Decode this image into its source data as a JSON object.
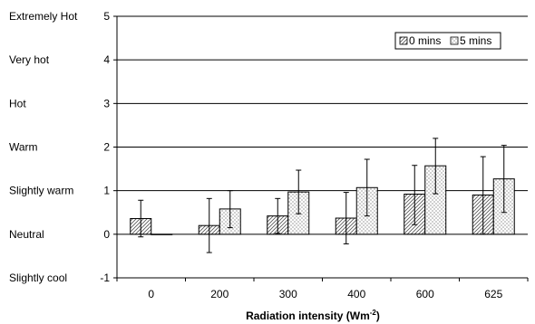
{
  "chart_data": {
    "type": "bar",
    "title": "",
    "xlabel": "Radiation intensity (Wm",
    "xlabel_sup": "-2",
    "xlabel_end": ")",
    "ylabel": "",
    "ylim": [
      -1,
      5
    ],
    "yticks": [
      -1,
      0,
      1,
      2,
      3,
      4,
      5
    ],
    "ytick_labels": [
      "-1",
      "0",
      "1",
      "2",
      "3",
      "4",
      "5"
    ],
    "scale_labels": [
      {
        "value": -1,
        "text": "Slightly cool"
      },
      {
        "value": 0,
        "text": "Neutral"
      },
      {
        "value": 1,
        "text": "Slightly warm"
      },
      {
        "value": 2,
        "text": "Warm"
      },
      {
        "value": 3,
        "text": "Hot"
      },
      {
        "value": 4,
        "text": "Very hot"
      },
      {
        "value": 5,
        "text": "Extremely Hot"
      }
    ],
    "categories": [
      "0",
      "200",
      "300",
      "400",
      "600",
      "625"
    ],
    "grid": true,
    "legend_position": "top-right",
    "series": [
      {
        "name": "0 mins",
        "pattern": "diagonal-hatch",
        "values": [
          0.36,
          0.2,
          0.42,
          0.37,
          0.92,
          0.9
        ],
        "error_low": [
          -0.06,
          -0.42,
          0.02,
          -0.22,
          0.22,
          0.0
        ],
        "error_high": [
          0.78,
          0.82,
          0.82,
          0.96,
          1.58,
          1.78
        ]
      },
      {
        "name": "5 mins",
        "pattern": "dotted",
        "values": [
          0.0,
          0.58,
          0.97,
          1.07,
          1.57,
          1.27
        ],
        "error_low": [
          0.0,
          0.15,
          0.47,
          0.42,
          0.93,
          0.5
        ],
        "error_high": [
          0.0,
          1.0,
          1.47,
          1.72,
          2.2,
          2.04
        ]
      }
    ]
  }
}
